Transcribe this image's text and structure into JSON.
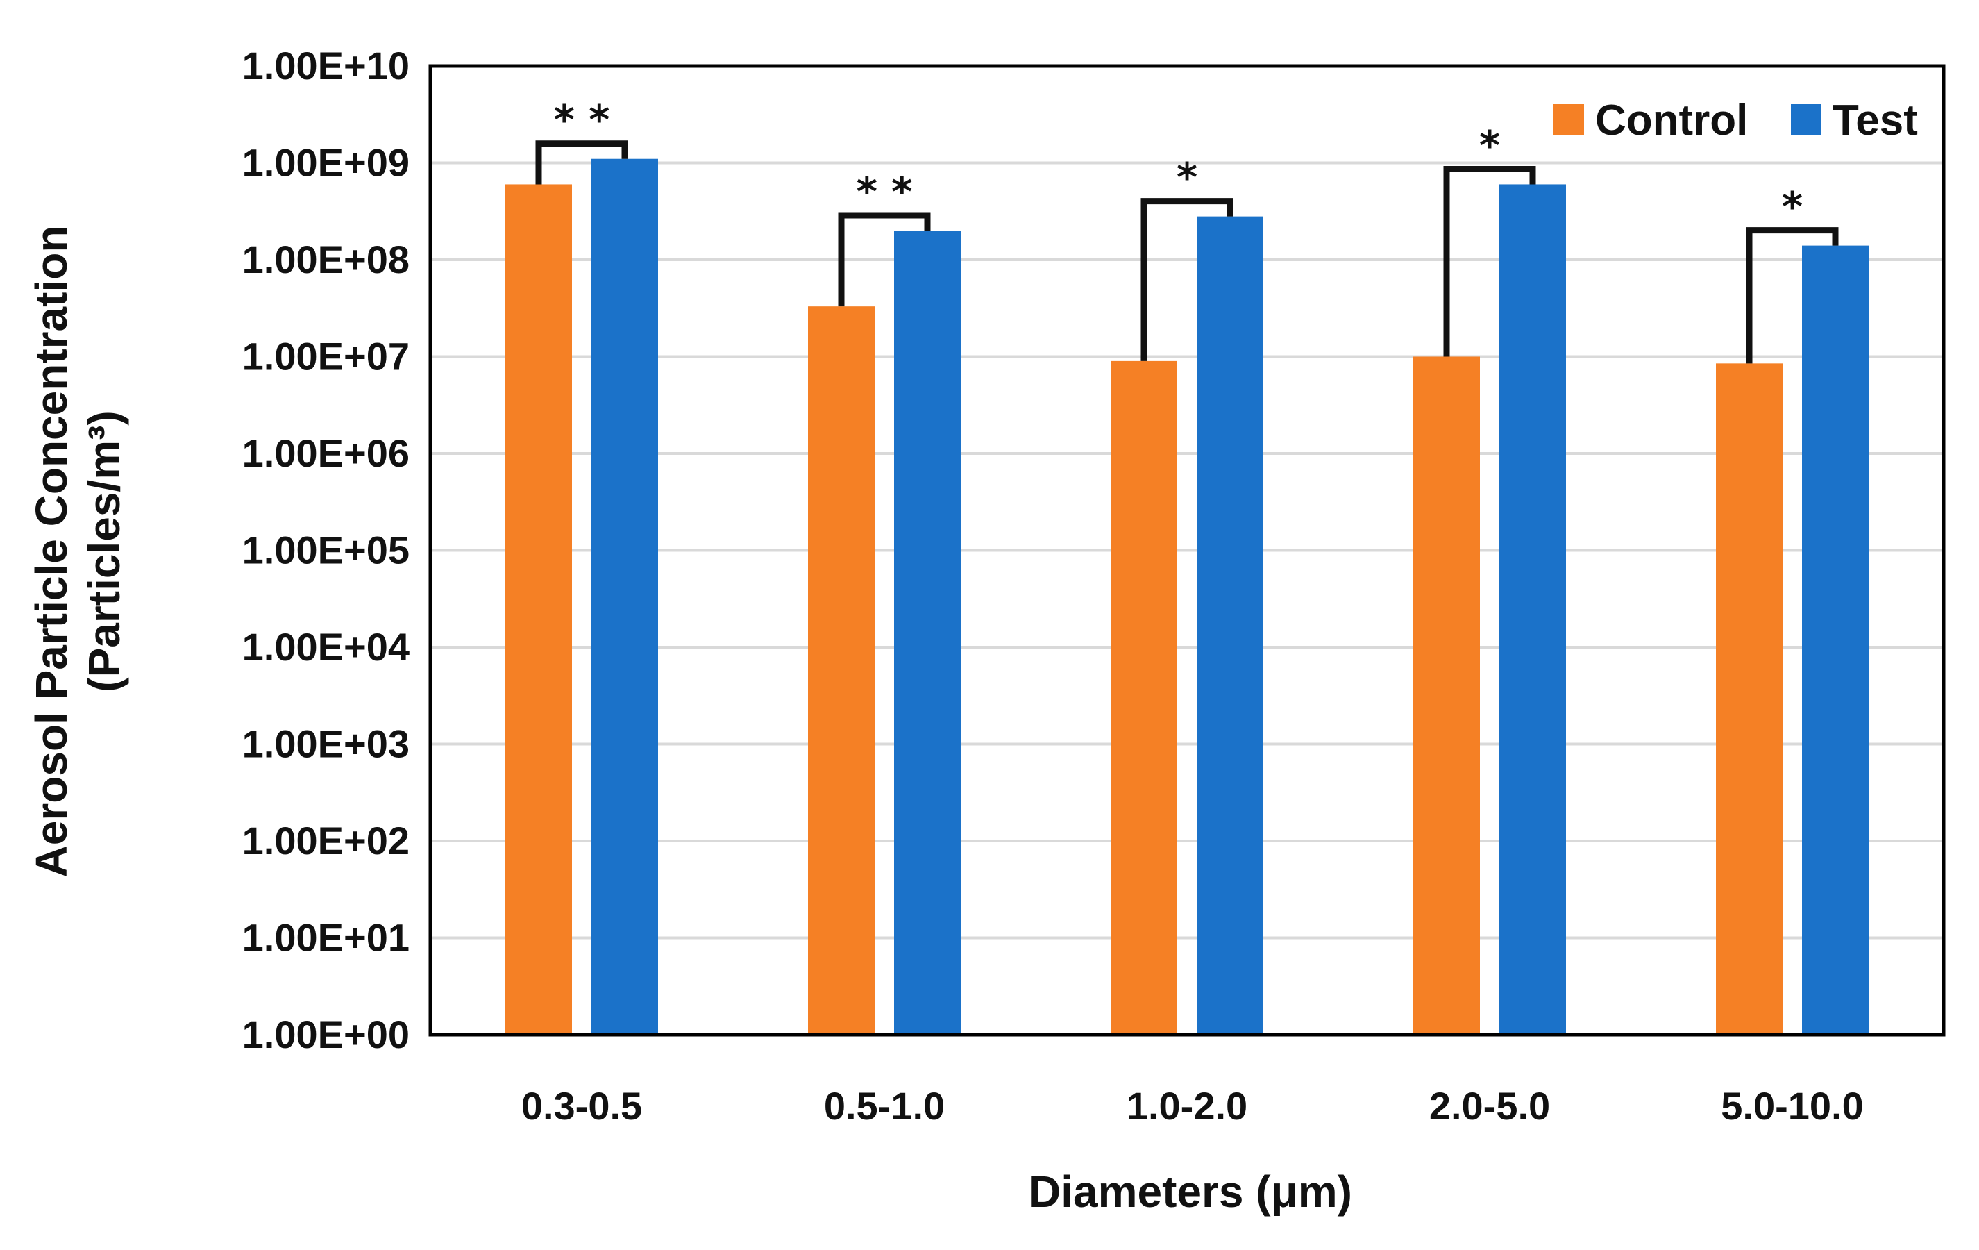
{
  "chart_data": {
    "type": "bar",
    "scale": "log",
    "xlabel": "Diameters (μm)",
    "ylabel_line1": "Aerosol Particle Concentration",
    "ylabel_line2": "(Particles/m³)",
    "categories": [
      "0.3-0.5",
      "0.5-1.0",
      "1.0-2.0",
      "2.0-5.0",
      "5.0-10.0"
    ],
    "series": [
      {
        "name": "Control",
        "color": "#F58025",
        "values": [
          600000000,
          33000000,
          9000000,
          10000000,
          8500000
        ]
      },
      {
        "name": "Test",
        "color": "#1B72C9",
        "values": [
          1100000000,
          200000000,
          280000000,
          600000000,
          140000000
        ]
      }
    ],
    "y_ticks": [
      "1.00E+00",
      "1.00E+01",
      "1.00E+02",
      "1.00E+03",
      "1.00E+04",
      "1.00E+05",
      "1.00E+06",
      "1.00E+07",
      "1.00E+08",
      "1.00E+09",
      "1.00E+10"
    ],
    "ylim": [
      1,
      10000000000
    ],
    "grid": true,
    "legend": {
      "position": "top-right",
      "entries": [
        "Control",
        "Test"
      ]
    },
    "significance": [
      "* *",
      "* *",
      "*",
      "*",
      "*"
    ],
    "bracket_color": "#111111",
    "grid_color": "#D9D9D9",
    "axis_color": "#000000"
  }
}
